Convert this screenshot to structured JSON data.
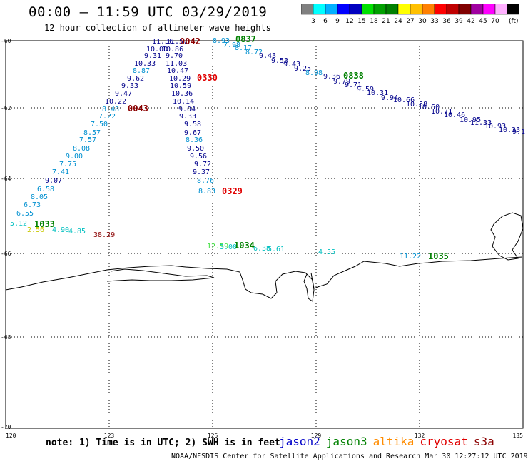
{
  "title": "00:00 – 11:59 UTC 03/29/2019",
  "subtitle": "12 hour collection of altimeter wave heights",
  "colorbar": {
    "colors": [
      "#808080",
      "#00ffff",
      "#00b0ff",
      "#0000ff",
      "#0000c0",
      "#00e000",
      "#00a000",
      "#008000",
      "#ffff00",
      "#ffc000",
      "#ff8000",
      "#ff0000",
      "#c00000",
      "#800000",
      "#a000a0",
      "#ff00ff",
      "#ffb0ff",
      "#000000"
    ],
    "labels": [
      "3",
      "6",
      "9",
      "12",
      "15",
      "18",
      "21",
      "24",
      "27",
      "30",
      "33",
      "36",
      "39",
      "42",
      "45",
      "70"
    ],
    "unit": "(ft)"
  },
  "axes": {
    "lon_ticks": [
      "120",
      "123",
      "126",
      "129",
      "132",
      "135"
    ],
    "lat_ticks": [
      "-60",
      "-62",
      "-64",
      "-66",
      "-68",
      "-70"
    ]
  },
  "passes": [
    {
      "label": "0042",
      "color": "#8b0000"
    },
    {
      "label": "0837",
      "color": "#008000"
    },
    {
      "label": "0330",
      "color": "#e00000"
    },
    {
      "label": "0838",
      "color": "#008000"
    },
    {
      "label": "0043",
      "color": "#8b0000"
    },
    {
      "label": "0329",
      "color": "#e00000"
    },
    {
      "label": "1033",
      "color": "#008000"
    },
    {
      "label": "1034",
      "color": "#008000"
    },
    {
      "label": "1035",
      "color": "#008000"
    }
  ],
  "wave_labels": [
    {
      "v": "11.36",
      "c": "#00008b"
    },
    {
      "v": "11.57",
      "c": "#00008b"
    },
    {
      "v": "10.00",
      "c": "#00008b"
    },
    {
      "v": "10.86",
      "c": "#00008b"
    },
    {
      "v": "9.31",
      "c": "#00008b"
    },
    {
      "v": "9.70",
      "c": "#00008b"
    },
    {
      "v": "10.33",
      "c": "#00008b"
    },
    {
      "v": "11.03",
      "c": "#00008b"
    },
    {
      "v": "8.87",
      "c": "#0090d0"
    },
    {
      "v": "10.47",
      "c": "#00008b"
    },
    {
      "v": "9.62",
      "c": "#00008b"
    },
    {
      "v": "10.29",
      "c": "#00008b"
    },
    {
      "v": "9.33",
      "c": "#00008b"
    },
    {
      "v": "10.59",
      "c": "#00008b"
    },
    {
      "v": "9.47",
      "c": "#00008b"
    },
    {
      "v": "10.36",
      "c": "#00008b"
    },
    {
      "v": "10.22",
      "c": "#00008b"
    },
    {
      "v": "10.14",
      "c": "#00008b"
    },
    {
      "v": "8.48",
      "c": "#0090d0"
    },
    {
      "v": "9.04",
      "c": "#00008b"
    },
    {
      "v": "7.22",
      "c": "#0090d0"
    },
    {
      "v": "9.33",
      "c": "#00008b"
    },
    {
      "v": "7.50",
      "c": "#0090d0"
    },
    {
      "v": "9.58",
      "c": "#00008b"
    },
    {
      "v": "8.57",
      "c": "#0090d0"
    },
    {
      "v": "9.67",
      "c": "#00008b"
    },
    {
      "v": "7.57",
      "c": "#0090d0"
    },
    {
      "v": "8.36",
      "c": "#0090d0"
    },
    {
      "v": "8.08",
      "c": "#0090d0"
    },
    {
      "v": "9.50",
      "c": "#00008b"
    },
    {
      "v": "9.00",
      "c": "#0090d0"
    },
    {
      "v": "9.56",
      "c": "#00008b"
    },
    {
      "v": "7.75",
      "c": "#0090d0"
    },
    {
      "v": "9.72",
      "c": "#00008b"
    },
    {
      "v": "7.41",
      "c": "#0090d0"
    },
    {
      "v": "9.37",
      "c": "#00008b"
    },
    {
      "v": "9.07",
      "c": "#00008b"
    },
    {
      "v": "8.76",
      "c": "#0090d0"
    },
    {
      "v": "6.58",
      "c": "#0090d0"
    },
    {
      "v": "8.83",
      "c": "#0090d0"
    },
    {
      "v": "8.05",
      "c": "#0090d0"
    },
    {
      "v": "6.73",
      "c": "#0090d0"
    },
    {
      "v": "6.55",
      "c": "#0090d0"
    },
    {
      "v": "5.12",
      "c": "#00c0c0"
    },
    {
      "v": "2.56",
      "c": "#c8c800"
    },
    {
      "v": "4.90",
      "c": "#00c0c0"
    },
    {
      "v": "4.85",
      "c": "#00c0c0"
    },
    {
      "v": "38.29",
      "c": "#8b0000"
    },
    {
      "v": "8.93",
      "c": "#0090d0"
    },
    {
      "v": "7.98",
      "c": "#0090d0"
    },
    {
      "v": "8.17",
      "c": "#0090d0"
    },
    {
      "v": "8.72",
      "c": "#0090d0"
    },
    {
      "v": "9.43",
      "c": "#00008b"
    },
    {
      "v": "9.53",
      "c": "#00008b"
    },
    {
      "v": "9.43",
      "c": "#00008b"
    },
    {
      "v": "9.25",
      "c": "#00008b"
    },
    {
      "v": "8.98",
      "c": "#0090d0"
    },
    {
      "v": "9.36",
      "c": "#00008b"
    },
    {
      "v": "9.79",
      "c": "#00008b"
    },
    {
      "v": "9.71",
      "c": "#00008b"
    },
    {
      "v": "9.59",
      "c": "#00008b"
    },
    {
      "v": "10.31",
      "c": "#00008b"
    },
    {
      "v": "9.94",
      "c": "#00008b"
    },
    {
      "v": "10.66",
      "c": "#00008b"
    },
    {
      "v": "10.58",
      "c": "#00008b"
    },
    {
      "v": "10.60",
      "c": "#00008b"
    },
    {
      "v": "10.71",
      "c": "#00008b"
    },
    {
      "v": "10.46",
      "c": "#00008b"
    },
    {
      "v": "10.95",
      "c": "#00008b"
    },
    {
      "v": "11.33",
      "c": "#00008b"
    },
    {
      "v": "10.93",
      "c": "#00008b"
    },
    {
      "v": "10.33",
      "c": "#00008b"
    },
    {
      "v": "9.1",
      "c": "#00008b"
    },
    {
      "v": "12.59",
      "c": "#40e040"
    },
    {
      "v": "3.00",
      "c": "#00c0c0"
    },
    {
      "v": "6.38",
      "c": "#00c0c0"
    },
    {
      "v": "5.61",
      "c": "#00c0c0"
    },
    {
      "v": "4.55",
      "c": "#00c0c0"
    },
    {
      "v": "11.22",
      "c": "#0090d0"
    }
  ],
  "note": "note: 1) Time is in UTC; 2) SWH is in feet",
  "legend": [
    {
      "name": "jason2",
      "color": "#0000c8"
    },
    {
      "name": "jason3",
      "color": "#008000"
    },
    {
      "name": "altika",
      "color": "#ff8c00"
    },
    {
      "name": "cryosat",
      "color": "#e00000"
    },
    {
      "name": "s3a",
      "color": "#8b0000"
    }
  ],
  "footer": "NOAA/NESDIS Center for Satellite Applications and Research   Mar 30 12:27:12 UTC 2019"
}
